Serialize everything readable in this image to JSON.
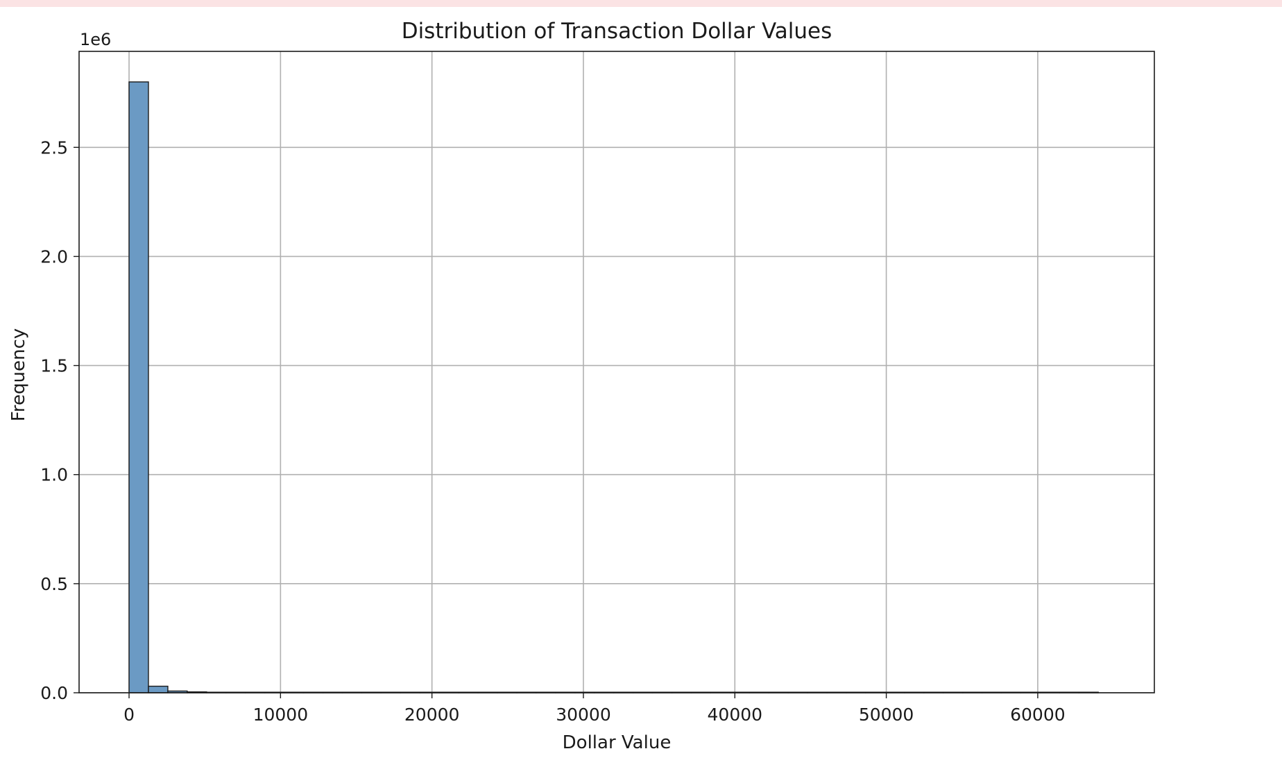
{
  "chart_data": {
    "type": "bar",
    "title": "Distribution of Transaction Dollar Values",
    "xlabel": "Dollar Value",
    "ylabel": "Frequency",
    "y_offset_label": "1e6",
    "xlim": [
      -3300,
      67700
    ],
    "ylim": [
      0,
      2.94
    ],
    "grid": true,
    "x_ticks": [
      0,
      10000,
      20000,
      30000,
      40000,
      50000,
      60000
    ],
    "x_tick_labels": [
      "0",
      "10000",
      "20000",
      "30000",
      "40000",
      "50000",
      "60000"
    ],
    "y_ticks": [
      0.0,
      0.5,
      1.0,
      1.5,
      2.0,
      2.5
    ],
    "y_tick_labels": [
      "0.0",
      "0.5",
      "1.0",
      "1.5",
      "2.0",
      "2.5"
    ],
    "bin_start": 0,
    "bin_width": 1280,
    "values": [
      2.8,
      0.03,
      0.008,
      0.004,
      0.002,
      0.001,
      0.0006,
      0.0004,
      0.0003,
      0.0002,
      0.0001,
      0.0001,
      0.0001,
      5e-05,
      5e-05,
      4e-05,
      3e-05,
      3e-05,
      2e-05,
      2e-05,
      2e-05,
      1e-05,
      1e-05,
      1e-05,
      1e-05,
      1e-05,
      1e-05,
      1e-05,
      1e-05,
      1e-05,
      1e-05,
      1e-05,
      1e-05,
      1e-05,
      1e-05,
      1e-05,
      1e-05,
      1e-05,
      1e-05,
      1e-05,
      1e-05,
      1e-05,
      1e-05,
      1e-05,
      1e-05,
      1e-05,
      1e-05,
      1e-05,
      1e-05,
      1e-05
    ],
    "bar_color": "#6b9ac4",
    "bar_edge_color": "#1a1a1a",
    "grid_color": "#b0b0b0"
  }
}
